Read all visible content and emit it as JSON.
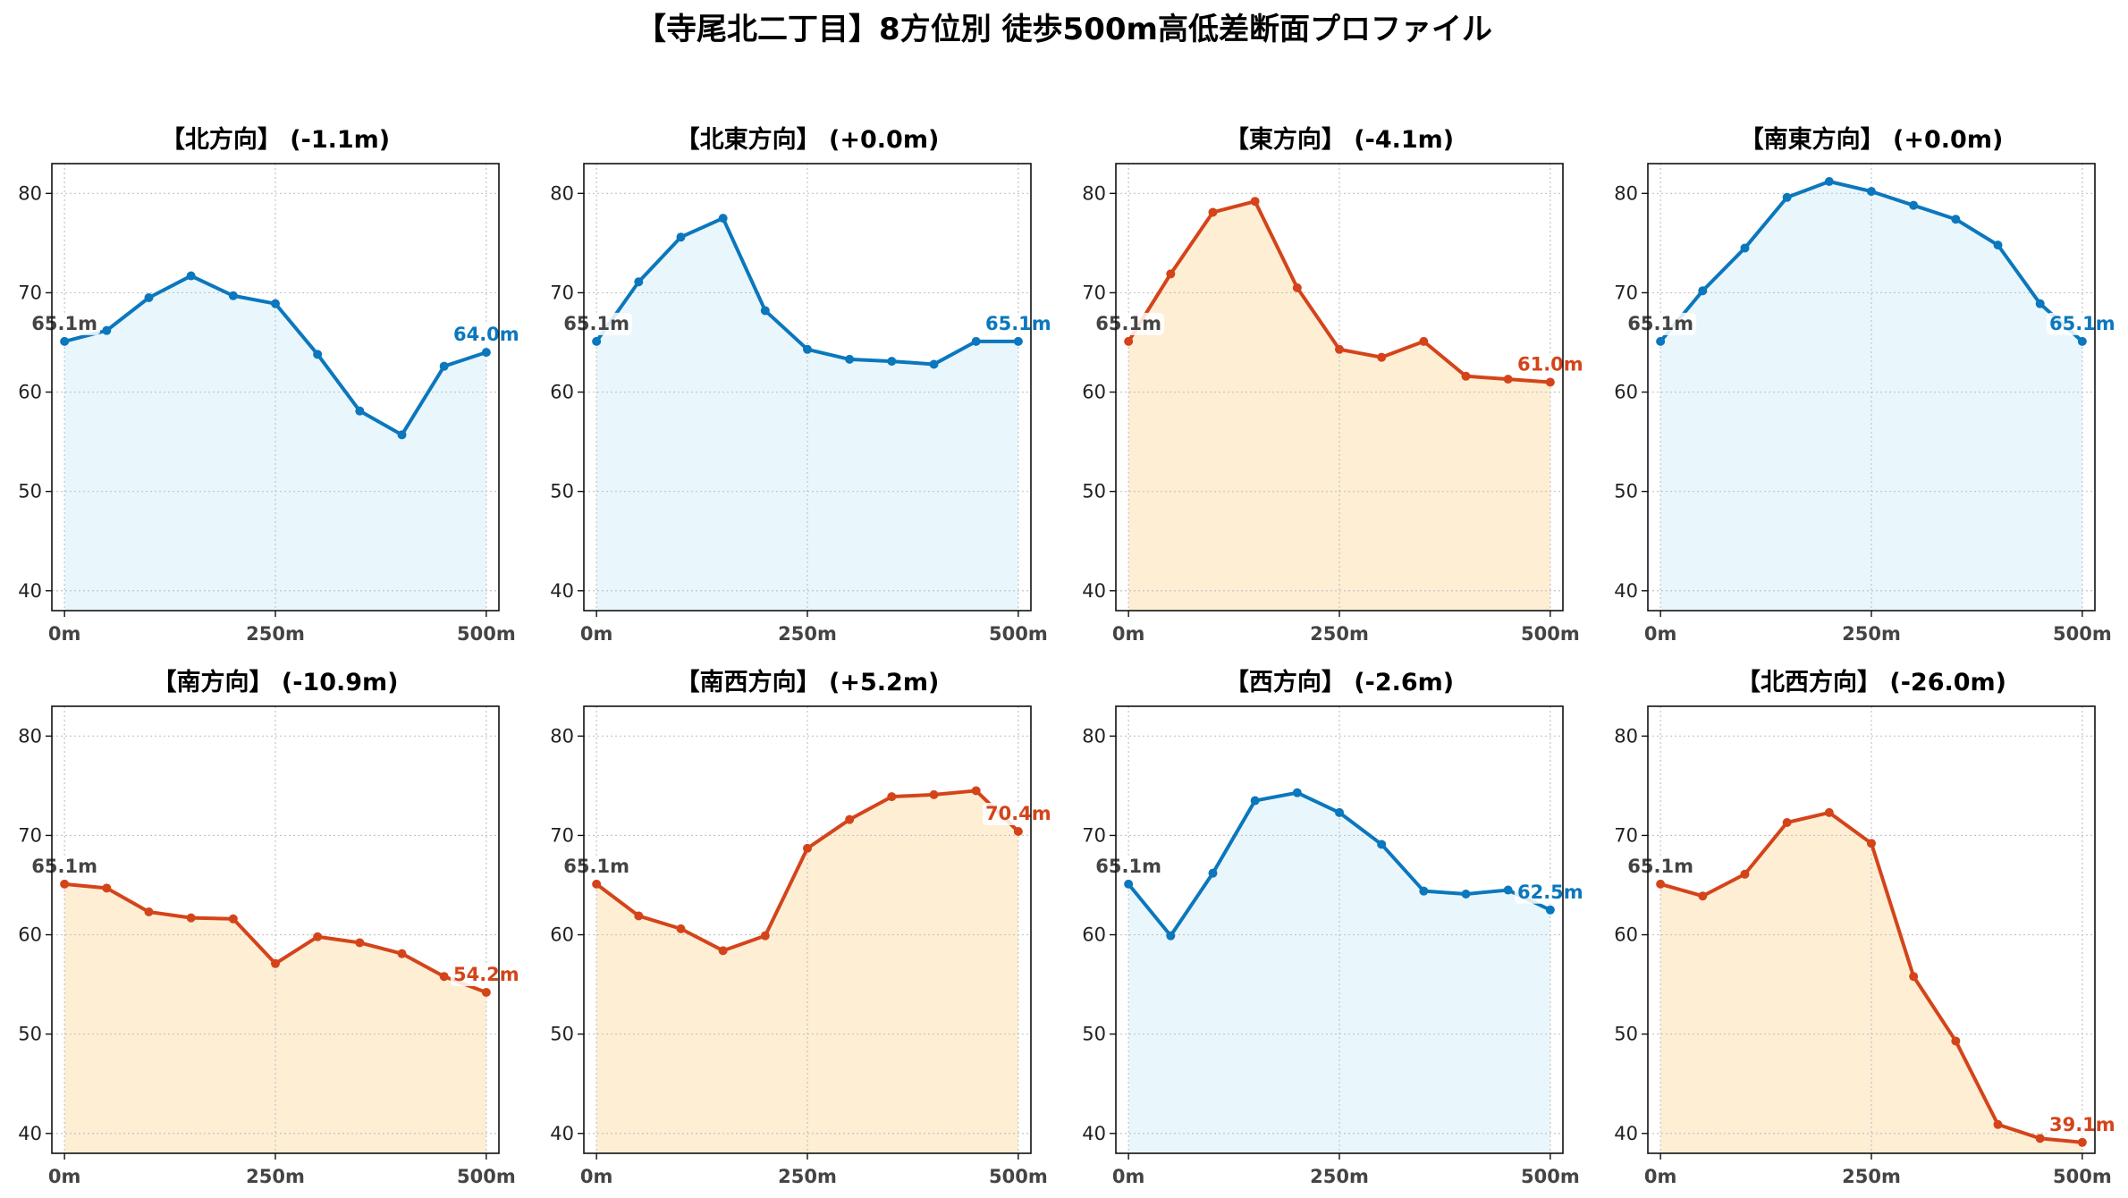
{
  "figure_title": "【寺尾北二丁目】8方位別 徒歩500m高低差断面プロファイル",
  "colors": {
    "up": "#0b77bd",
    "up_fill": "#e9f7fc",
    "down": "#d4441a",
    "down_fill": "#fdeed4",
    "start_label": "#444444"
  },
  "chart_data": [
    {
      "type": "area",
      "title": "【北方向】 (-1.1m)",
      "trend": "up",
      "x": [
        0,
        50,
        100,
        150,
        200,
        250,
        300,
        350,
        400,
        450,
        500
      ],
      "values": [
        65.1,
        66.2,
        69.5,
        71.7,
        69.7,
        68.9,
        63.8,
        58.1,
        55.7,
        62.6,
        64.0
      ],
      "start_label": "65.1m",
      "end_label": "64.0m",
      "xticks": [
        "0m",
        "250m",
        "500m"
      ],
      "yticks": [
        "40",
        "50",
        "60",
        "70",
        "80"
      ],
      "ylim": [
        38,
        83
      ],
      "grid": true
    },
    {
      "type": "area",
      "title": "【北東方向】 (+0.0m)",
      "trend": "up",
      "x": [
        0,
        50,
        100,
        150,
        200,
        250,
        300,
        350,
        400,
        450,
        500
      ],
      "values": [
        65.1,
        71.1,
        75.6,
        77.5,
        68.2,
        64.3,
        63.3,
        63.1,
        62.8,
        65.1,
        65.1
      ],
      "start_label": "65.1m",
      "end_label": "65.1m",
      "xticks": [
        "0m",
        "250m",
        "500m"
      ],
      "yticks": [
        "40",
        "50",
        "60",
        "70",
        "80"
      ],
      "ylim": [
        38,
        83
      ],
      "grid": true
    },
    {
      "type": "area",
      "title": "【東方向】 (-4.1m)",
      "trend": "down",
      "x": [
        0,
        50,
        100,
        150,
        200,
        250,
        300,
        350,
        400,
        450,
        500
      ],
      "values": [
        65.1,
        71.9,
        78.1,
        79.2,
        70.5,
        64.3,
        63.5,
        65.1,
        61.6,
        61.3,
        61.0
      ],
      "start_label": "65.1m",
      "end_label": "61.0m",
      "xticks": [
        "0m",
        "250m",
        "500m"
      ],
      "yticks": [
        "40",
        "50",
        "60",
        "70",
        "80"
      ],
      "ylim": [
        38,
        83
      ],
      "grid": true
    },
    {
      "type": "area",
      "title": "【南東方向】 (+0.0m)",
      "trend": "up",
      "x": [
        0,
        50,
        100,
        150,
        200,
        250,
        300,
        350,
        400,
        450,
        500
      ],
      "values": [
        65.1,
        70.2,
        74.5,
        79.6,
        81.2,
        80.2,
        78.8,
        77.4,
        74.8,
        68.9,
        65.1
      ],
      "start_label": "65.1m",
      "end_label": "65.1m",
      "xticks": [
        "0m",
        "250m",
        "500m"
      ],
      "yticks": [
        "40",
        "50",
        "60",
        "70",
        "80"
      ],
      "ylim": [
        38,
        83
      ],
      "grid": true
    },
    {
      "type": "area",
      "title": "【南方向】 (-10.9m)",
      "trend": "down",
      "x": [
        0,
        50,
        100,
        150,
        200,
        250,
        300,
        350,
        400,
        450,
        500
      ],
      "values": [
        65.1,
        64.7,
        62.3,
        61.7,
        61.6,
        57.1,
        59.8,
        59.2,
        58.1,
        55.8,
        54.2
      ],
      "start_label": "65.1m",
      "end_label": "54.2m",
      "xticks": [
        "0m",
        "250m",
        "500m"
      ],
      "yticks": [
        "40",
        "50",
        "60",
        "70",
        "80"
      ],
      "ylim": [
        38,
        83
      ],
      "grid": true
    },
    {
      "type": "area",
      "title": "【南西方向】 (+5.2m)",
      "trend": "down",
      "x": [
        0,
        50,
        100,
        150,
        200,
        250,
        300,
        350,
        400,
        450,
        500
      ],
      "values": [
        65.1,
        61.9,
        60.6,
        58.4,
        59.9,
        68.7,
        71.6,
        73.9,
        74.1,
        74.5,
        70.4
      ],
      "start_label": "65.1m",
      "end_label": "70.4m",
      "xticks": [
        "0m",
        "250m",
        "500m"
      ],
      "yticks": [
        "40",
        "50",
        "60",
        "70",
        "80"
      ],
      "ylim": [
        38,
        83
      ],
      "grid": true
    },
    {
      "type": "area",
      "title": "【西方向】 (-2.6m)",
      "trend": "up",
      "x": [
        0,
        50,
        100,
        150,
        200,
        250,
        300,
        350,
        400,
        450,
        500
      ],
      "values": [
        65.1,
        59.9,
        66.2,
        73.5,
        74.3,
        72.3,
        69.1,
        64.4,
        64.1,
        64.5,
        62.5
      ],
      "start_label": "65.1m",
      "end_label": "62.5m",
      "xticks": [
        "0m",
        "250m",
        "500m"
      ],
      "yticks": [
        "40",
        "50",
        "60",
        "70",
        "80"
      ],
      "ylim": [
        38,
        83
      ],
      "grid": true
    },
    {
      "type": "area",
      "title": "【北西方向】 (-26.0m)",
      "trend": "down",
      "x": [
        0,
        50,
        100,
        150,
        200,
        250,
        300,
        350,
        400,
        450,
        500
      ],
      "values": [
        65.1,
        63.9,
        66.1,
        71.3,
        72.3,
        69.2,
        55.8,
        49.3,
        40.9,
        39.5,
        39.1
      ],
      "start_label": "65.1m",
      "end_label": "39.1m",
      "xticks": [
        "0m",
        "250m",
        "500m"
      ],
      "yticks": [
        "40",
        "50",
        "60",
        "70",
        "80"
      ],
      "ylim": [
        38,
        83
      ],
      "grid": true
    }
  ]
}
